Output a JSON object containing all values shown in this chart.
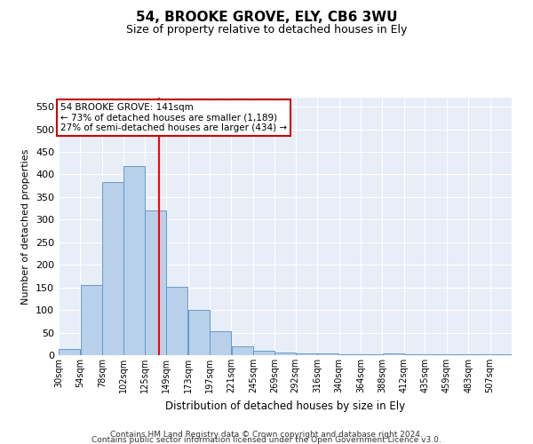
{
  "title": "54, BROOKE GROVE, ELY, CB6 3WU",
  "subtitle": "Size of property relative to detached houses in Ely",
  "xlabel": "Distribution of detached houses by size in Ely",
  "ylabel": "Number of detached properties",
  "bar_color": "#b8d0ea",
  "bar_edge_color": "#6699cc",
  "background_color": "#e8eef8",
  "grid_color": "#ffffff",
  "categories": [
    "30sqm",
    "54sqm",
    "78sqm",
    "102sqm",
    "125sqm",
    "149sqm",
    "173sqm",
    "197sqm",
    "221sqm",
    "245sqm",
    "269sqm",
    "292sqm",
    "316sqm",
    "340sqm",
    "364sqm",
    "388sqm",
    "412sqm",
    "435sqm",
    "459sqm",
    "483sqm",
    "507sqm"
  ],
  "values": [
    13,
    155,
    383,
    419,
    320,
    152,
    100,
    54,
    20,
    10,
    5,
    3,
    3,
    2,
    2,
    3,
    1,
    2,
    1,
    2,
    2
  ],
  "bin_edges": [
    30,
    54,
    78,
    102,
    125,
    149,
    173,
    197,
    221,
    245,
    269,
    292,
    316,
    340,
    364,
    388,
    412,
    435,
    459,
    483,
    507,
    531
  ],
  "red_line_x": 141,
  "ylim": [
    0,
    570
  ],
  "yticks": [
    0,
    50,
    100,
    150,
    200,
    250,
    300,
    350,
    400,
    450,
    500,
    550
  ],
  "annotation_text": "54 BROOKE GROVE: 141sqm\n← 73% of detached houses are smaller (1,189)\n27% of semi-detached houses are larger (434) →",
  "annotation_box_color": "#ffffff",
  "annotation_box_edge": "#cc0000",
  "footer_line1": "Contains HM Land Registry data © Crown copyright and database right 2024.",
  "footer_line2": "Contains public sector information licensed under the Open Government Licence v3.0."
}
